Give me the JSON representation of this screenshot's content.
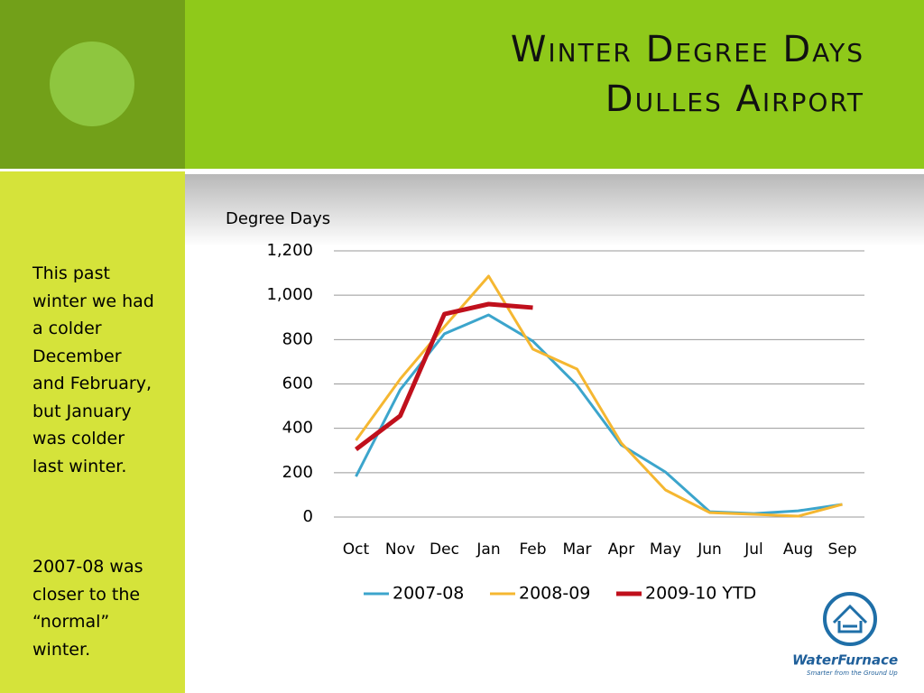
{
  "slide": {
    "title_lines": [
      "Winter Degree Days",
      "Dulles Airport"
    ],
    "notes": [
      [
        "This past",
        "winter we had",
        "a colder",
        "December",
        "and February,",
        "but January",
        "was colder",
        "last winter."
      ],
      [
        "2007-08 was",
        "closer to the",
        "“normal”",
        "winter."
      ]
    ],
    "logo": {
      "name": "WaterFurnace",
      "tagline": "Smarter from the Ground Up"
    }
  },
  "chart_data": {
    "type": "line",
    "y_label": "Degree Days",
    "categories": [
      "Oct",
      "Nov",
      "Dec",
      "Jan",
      "Feb",
      "Mar",
      "Apr",
      "May",
      "Jun",
      "Jul",
      "Aug",
      "Sep"
    ],
    "series": [
      {
        "name": "2007-08",
        "color": "#3ca5cc",
        "values": [
          183,
          574,
          826,
          911,
          793,
          594,
          325,
          203,
          24,
          16,
          28,
          57
        ]
      },
      {
        "name": "2008-09",
        "color": "#f5b731",
        "values": [
          346,
          622,
          858,
          1086,
          757,
          667,
          334,
          122,
          20,
          12,
          4,
          57
        ]
      },
      {
        "name": "2009-10 YTD",
        "color": "#c0101c",
        "values": [
          305,
          456,
          915,
          960,
          944,
          null,
          null,
          null,
          null,
          null,
          null,
          null
        ]
      }
    ],
    "ylim": [
      0,
      1200
    ],
    "yticks": [
      0,
      200,
      400,
      600,
      800,
      {
        "value": 1000,
        "label": "1,000"
      },
      {
        "value": 1200,
        "label": "1,200"
      }
    ],
    "grid": true,
    "legend": "bottom"
  }
}
